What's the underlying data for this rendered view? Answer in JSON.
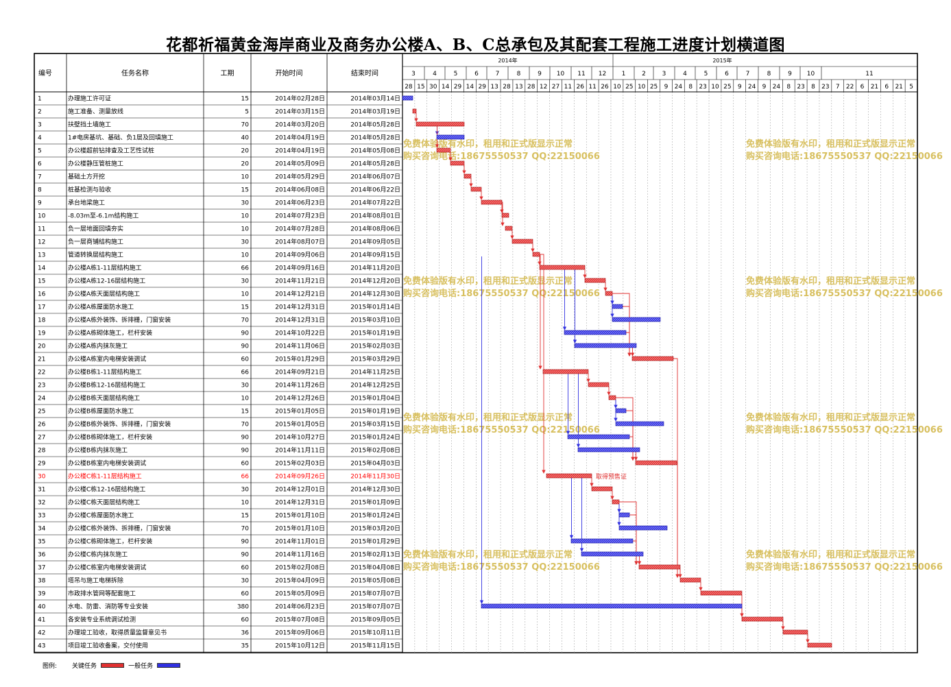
{
  "title": "花都祈福黄金海岸商业及商务办公楼A、B、C总承包及其配套工程施工进度计划横道图",
  "table_headers": [
    "编号",
    "任务名称",
    "工期",
    "开始时间",
    "结束时间"
  ],
  "legend": {
    "label": "图例:",
    "critical": "关键任务",
    "normal": "一般任务"
  },
  "colors": {
    "critical": "#e03030",
    "normal": "#3030e0",
    "highlight_row": "#ff0000",
    "watermark": "#d8c060"
  },
  "watermark": {
    "line1": "免费体验版有水印，租用和正式版显示正常",
    "line2": "购买咨询电话:18675550537 QQ:22150066"
  },
  "annotation": "取得预售证",
  "chart_data": {
    "type": "gantt",
    "years": [
      {
        "label": "2014年",
        "start": "2014-02-28",
        "end": "2014-12-31"
      },
      {
        "label": "2015年",
        "start": "2015-01-01",
        "end": "2015-11-15"
      }
    ],
    "months": [
      "3",
      "4",
      "5",
      "6",
      "7",
      "8",
      "9",
      "10",
      "11",
      "12",
      "1",
      "2",
      "3",
      "4",
      "5",
      "6",
      "7",
      "8",
      "9",
      "10",
      "11"
    ],
    "day_ticks": [
      "28",
      "15",
      "30",
      "14",
      "29",
      "14",
      "29",
      "13",
      "28",
      "13",
      "28",
      "12",
      "27",
      "11",
      "26",
      "11",
      "26",
      "10",
      "25",
      "10",
      "25",
      "9",
      "24",
      "8",
      "23",
      "10",
      "25",
      "9",
      "24",
      "9",
      "24",
      "8",
      "23",
      "8",
      "23",
      "7",
      "22",
      "6",
      "21",
      "6",
      "21",
      "5"
    ],
    "tasks": [
      {
        "id": "1",
        "name": "办理施工许可证",
        "dur": "15",
        "start": "2014年02月28日",
        "end": "2014年03月14日",
        "s": "2014-02-28",
        "e": "2014-03-14",
        "critical": false
      },
      {
        "id": "2",
        "name": "施工准备、测量放线",
        "dur": "5",
        "start": "2014年03月15日",
        "end": "2014年03月19日",
        "s": "2014-03-15",
        "e": "2014-03-19",
        "critical": true
      },
      {
        "id": "3",
        "name": "扶壁挡土墙施工",
        "dur": "70",
        "start": "2014年03月20日",
        "end": "2014年05月28日",
        "s": "2014-03-20",
        "e": "2014-05-28",
        "critical": true
      },
      {
        "id": "4",
        "name": "1#电房基坑、基础、负1层及回填施工",
        "dur": "40",
        "start": "2014年04月19日",
        "end": "2014年05月28日",
        "s": "2014-04-19",
        "e": "2014-05-28",
        "critical": false
      },
      {
        "id": "5",
        "name": "办公楼超前钻排查及工艺性试桩",
        "dur": "20",
        "start": "2014年04月19日",
        "end": "2014年05月08日",
        "s": "2014-04-19",
        "e": "2014-05-08",
        "critical": true
      },
      {
        "id": "6",
        "name": "办公楼静压管桩施工",
        "dur": "20",
        "start": "2014年05月09日",
        "end": "2014年05月28日",
        "s": "2014-05-09",
        "e": "2014-05-28",
        "critical": true
      },
      {
        "id": "7",
        "name": "基础土方开挖",
        "dur": "10",
        "start": "2014年05月29日",
        "end": "2014年06月07日",
        "s": "2014-05-29",
        "e": "2014-06-07",
        "critical": true
      },
      {
        "id": "8",
        "name": "桩基检测与验收",
        "dur": "15",
        "start": "2014年06月08日",
        "end": "2014年06月22日",
        "s": "2014-06-08",
        "e": "2014-06-22",
        "critical": true
      },
      {
        "id": "9",
        "name": "承台地梁施工",
        "dur": "30",
        "start": "2014年06月23日",
        "end": "2014年07月22日",
        "s": "2014-06-23",
        "e": "2014-07-22",
        "critical": true
      },
      {
        "id": "10",
        "name": "-8.03m至-6.1m结构施工",
        "dur": "10",
        "start": "2014年07月23日",
        "end": "2014年08月01日",
        "s": "2014-07-23",
        "e": "2014-08-01",
        "critical": true
      },
      {
        "id": "11",
        "name": "负一层地面回填夯实",
        "dur": "10",
        "start": "2014年07月28日",
        "end": "2014年08月06日",
        "s": "2014-07-28",
        "e": "2014-08-06",
        "critical": true
      },
      {
        "id": "12",
        "name": "负一层商铺结构施工",
        "dur": "30",
        "start": "2014年08月07日",
        "end": "2014年09月05日",
        "s": "2014-08-07",
        "e": "2014-09-05",
        "critical": true
      },
      {
        "id": "13",
        "name": "管道转换层结构施工",
        "dur": "10",
        "start": "2014年09月06日",
        "end": "2014年09月15日",
        "s": "2014-09-06",
        "e": "2014-09-15",
        "critical": true
      },
      {
        "id": "14",
        "name": "办公楼A栋1-11层结构施工",
        "dur": "66",
        "start": "2014年09月16日",
        "end": "2014年11月20日",
        "s": "2014-09-16",
        "e": "2014-11-20",
        "critical": true
      },
      {
        "id": "15",
        "name": "办公楼A栋12-16层结构施工",
        "dur": "30",
        "start": "2014年11月21日",
        "end": "2014年12月20日",
        "s": "2014-11-21",
        "e": "2014-12-20",
        "critical": true
      },
      {
        "id": "16",
        "name": "办公楼A栋天面层结构施工",
        "dur": "10",
        "start": "2014年12月21日",
        "end": "2014年12月30日",
        "s": "2014-12-21",
        "e": "2014-12-30",
        "critical": true
      },
      {
        "id": "17",
        "name": "办公楼A栋屋面防水施工",
        "dur": "15",
        "start": "2014年12月31日",
        "end": "2015年01月14日",
        "s": "2014-12-31",
        "e": "2015-01-14",
        "critical": false
      },
      {
        "id": "18",
        "name": "办公楼A栋外装饰、拆排栅，门窗安装",
        "dur": "70",
        "start": "2014年12月31日",
        "end": "2015年03月10日",
        "s": "2014-12-31",
        "e": "2015-03-10",
        "critical": false
      },
      {
        "id": "19",
        "name": "办公楼A栋砌体施工，栏杆安装",
        "dur": "90",
        "start": "2014年10月22日",
        "end": "2015年01月19日",
        "s": "2014-10-22",
        "e": "2015-01-19",
        "critical": false
      },
      {
        "id": "20",
        "name": "办公楼A栋内抹灰施工",
        "dur": "90",
        "start": "2014年11月06日",
        "end": "2015年02月03日",
        "s": "2014-11-06",
        "e": "2015-02-03",
        "critical": false
      },
      {
        "id": "21",
        "name": "办公楼A栋室内电梯安装调试",
        "dur": "60",
        "start": "2015年01月29日",
        "end": "2015年03月29日",
        "s": "2015-01-29",
        "e": "2015-03-29",
        "critical": true
      },
      {
        "id": "22",
        "name": "办公楼B栋1-11层结构施工",
        "dur": "66",
        "start": "2014年09月21日",
        "end": "2014年11月25日",
        "s": "2014-09-21",
        "e": "2014-11-25",
        "critical": true
      },
      {
        "id": "23",
        "name": "办公楼B栋12-16层结构施工",
        "dur": "30",
        "start": "2014年11月26日",
        "end": "2014年12月25日",
        "s": "2014-11-26",
        "e": "2014-12-25",
        "critical": true
      },
      {
        "id": "24",
        "name": "办公楼B栋天面层结构施工",
        "dur": "10",
        "start": "2014年12月26日",
        "end": "2015年01月04日",
        "s": "2014-12-26",
        "e": "2015-01-04",
        "critical": true
      },
      {
        "id": "25",
        "name": "办公楼B栋屋面防水施工",
        "dur": "15",
        "start": "2015年01月05日",
        "end": "2015年01月19日",
        "s": "2015-01-05",
        "e": "2015-01-19",
        "critical": false
      },
      {
        "id": "26",
        "name": "办公楼B栋外装饰、拆排栅，门窗安装",
        "dur": "70",
        "start": "2015年01月05日",
        "end": "2015年03月15日",
        "s": "2015-01-05",
        "e": "2015-03-15",
        "critical": false
      },
      {
        "id": "27",
        "name": "办公楼B栋砌体施工，栏杆安装",
        "dur": "90",
        "start": "2014年10月27日",
        "end": "2015年01月24日",
        "s": "2014-10-27",
        "e": "2015-01-24",
        "critical": false
      },
      {
        "id": "28",
        "name": "办公楼B栋内抹灰施工",
        "dur": "90",
        "start": "2014年11月11日",
        "end": "2015年02月08日",
        "s": "2014-11-11",
        "e": "2015-02-08",
        "critical": false
      },
      {
        "id": "29",
        "name": "办公楼B栋室内电梯安装调试",
        "dur": "60",
        "start": "2015年02月03日",
        "end": "2015年04月03日",
        "s": "2015-02-03",
        "e": "2015-04-03",
        "critical": true
      },
      {
        "id": "30",
        "name": "办公楼C栋1-11层结构施工",
        "dur": "66",
        "start": "2014年09月26日",
        "end": "2014年11月30日",
        "s": "2014-09-26",
        "e": "2014-11-30",
        "critical": true,
        "highlight": true
      },
      {
        "id": "31",
        "name": "办公楼C栋12-16层结构施工",
        "dur": "30",
        "start": "2014年12月01日",
        "end": "2014年12月30日",
        "s": "2014-12-01",
        "e": "2014-12-30",
        "critical": true
      },
      {
        "id": "32",
        "name": "办公楼C栋天面层结构施工",
        "dur": "10",
        "start": "2014年12月31日",
        "end": "2015年01月09日",
        "s": "2014-12-31",
        "e": "2015-01-09",
        "critical": true
      },
      {
        "id": "33",
        "name": "办公楼C栋屋面防水施工",
        "dur": "15",
        "start": "2015年01月10日",
        "end": "2015年01月24日",
        "s": "2015-01-10",
        "e": "2015-01-24",
        "critical": false
      },
      {
        "id": "34",
        "name": "办公楼C栋外装饰、拆排栅，门窗安装",
        "dur": "70",
        "start": "2015年01月10日",
        "end": "2015年03月20日",
        "s": "2015-01-10",
        "e": "2015-03-20",
        "critical": false
      },
      {
        "id": "35",
        "name": "办公楼C栋砌体施工，栏杆安装",
        "dur": "90",
        "start": "2014年11月01日",
        "end": "2015年01月29日",
        "s": "2014-11-01",
        "e": "2015-01-29",
        "critical": false
      },
      {
        "id": "36",
        "name": "办公楼C栋内抹灰施工",
        "dur": "90",
        "start": "2014年11月16日",
        "end": "2015年02月13日",
        "s": "2014-11-16",
        "e": "2015-02-13",
        "critical": false
      },
      {
        "id": "37",
        "name": "办公楼C栋室内电梯安装调试",
        "dur": "60",
        "start": "2015年02月08日",
        "end": "2015年04月08日",
        "s": "2015-02-08",
        "e": "2015-04-08",
        "critical": true
      },
      {
        "id": "38",
        "name": "塔吊与施工电梯拆除",
        "dur": "30",
        "start": "2015年04月09日",
        "end": "2015年05月08日",
        "s": "2015-04-09",
        "e": "2015-05-08",
        "critical": true
      },
      {
        "id": "39",
        "name": "市政排水管网等配套施工",
        "dur": "60",
        "start": "2015年05月09日",
        "end": "2015年07月07日",
        "s": "2015-05-09",
        "e": "2015-07-07",
        "critical": true
      },
      {
        "id": "40",
        "name": "水电、防雷、消防等专业安装",
        "dur": "380",
        "start": "2014年06月23日",
        "end": "2015年07月07日",
        "s": "2014-06-23",
        "e": "2015-07-07",
        "critical": false
      },
      {
        "id": "41",
        "name": "各安装专业系统调试检测",
        "dur": "60",
        "start": "2015年07月08日",
        "end": "2015年09月05日",
        "s": "2015-07-08",
        "e": "2015-09-05",
        "critical": true
      },
      {
        "id": "42",
        "name": "办理竣工验收，取得质量监督意见书",
        "dur": "36",
        "start": "2015年09月06日",
        "end": "2015年10月11日",
        "s": "2015-09-06",
        "e": "2015-10-11",
        "critical": true
      },
      {
        "id": "43",
        "name": "项目竣工验收备案，交付使用",
        "dur": "35",
        "start": "2015年10月12日",
        "end": "2015年11月15日",
        "s": "2015-10-12",
        "e": "2015-11-15",
        "critical": true
      }
    ],
    "links": [
      [
        2,
        3
      ],
      [
        3,
        4
      ],
      [
        3,
        5
      ],
      [
        5,
        6
      ],
      [
        6,
        7
      ],
      [
        7,
        8
      ],
      [
        8,
        9
      ],
      [
        9,
        10
      ],
      [
        9,
        11
      ],
      [
        11,
        12
      ],
      [
        12,
        13
      ],
      [
        13,
        14
      ],
      [
        13,
        22
      ],
      [
        13,
        30
      ],
      [
        13,
        40
      ],
      [
        14,
        15
      ],
      [
        14,
        19
      ],
      [
        14,
        20
      ],
      [
        15,
        16
      ],
      [
        16,
        17
      ],
      [
        16,
        18
      ],
      [
        16,
        21
      ],
      [
        17,
        21
      ],
      [
        19,
        21
      ],
      [
        20,
        21
      ],
      [
        22,
        23
      ],
      [
        22,
        27
      ],
      [
        22,
        28
      ],
      [
        23,
        24
      ],
      [
        24,
        25
      ],
      [
        24,
        26
      ],
      [
        24,
        29
      ],
      [
        25,
        29
      ],
      [
        27,
        29
      ],
      [
        28,
        29
      ],
      [
        30,
        31
      ],
      [
        30,
        35
      ],
      [
        30,
        36
      ],
      [
        31,
        32
      ],
      [
        32,
        33
      ],
      [
        32,
        34
      ],
      [
        32,
        37
      ],
      [
        33,
        37
      ],
      [
        35,
        37
      ],
      [
        36,
        37
      ],
      [
        21,
        38
      ],
      [
        29,
        38
      ],
      [
        37,
        38
      ],
      [
        38,
        39
      ],
      [
        39,
        41
      ],
      [
        40,
        41
      ],
      [
        41,
        42
      ],
      [
        42,
        43
      ]
    ]
  }
}
